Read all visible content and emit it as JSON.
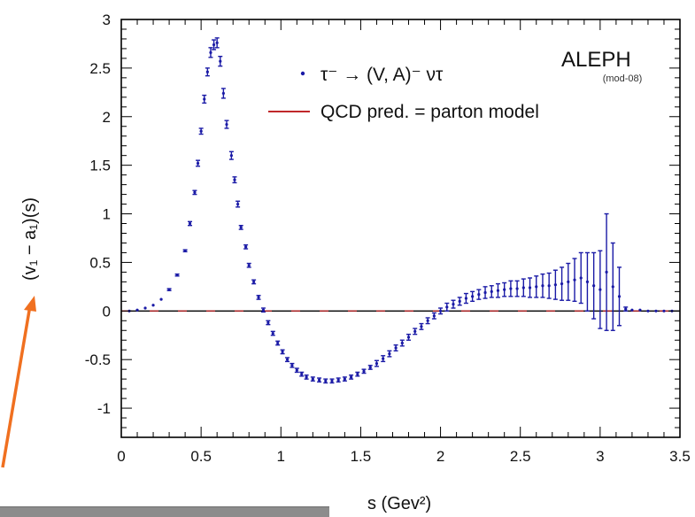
{
  "chart_data": {
    "type": "scatter",
    "title": "",
    "xlabel": "s   (Gev²)",
    "ylabel": "(v₁ − a₁)(s)",
    "xlim": [
      0,
      3.5
    ],
    "ylim": [
      -1.3,
      3.0
    ],
    "x_ticks": [
      "0",
      "0.5",
      "1",
      "1.5",
      "2",
      "2.5",
      "3",
      "3.5"
    ],
    "y_ticks": [
      "-1",
      "-0.5",
      "0",
      "0.5",
      "1",
      "1.5",
      "2",
      "2.5",
      "3"
    ],
    "grid": false,
    "legend_placement": "top-right",
    "annotations": {
      "experiment": "ALEPH",
      "sub": "(mod-08)"
    },
    "legend": [
      {
        "label": "τ⁻ → (V, A)⁻ ντ",
        "color": "#1a1aa6",
        "marker": "point"
      },
      {
        "label": "QCD pred. = parton model",
        "color": "#c0282a",
        "marker": "line"
      }
    ],
    "series": [
      {
        "name": "τ⁻ → (V, A)⁻ ντ",
        "color": "#1a1aa6",
        "points": [
          {
            "x": 0.05,
            "y": 0.0,
            "e": 0.0
          },
          {
            "x": 0.1,
            "y": 0.01,
            "e": 0.0
          },
          {
            "x": 0.15,
            "y": 0.03,
            "e": 0.0
          },
          {
            "x": 0.2,
            "y": 0.06,
            "e": 0.0
          },
          {
            "x": 0.25,
            "y": 0.12,
            "e": 0.0
          },
          {
            "x": 0.3,
            "y": 0.22,
            "e": 0.01
          },
          {
            "x": 0.35,
            "y": 0.37,
            "e": 0.01
          },
          {
            "x": 0.4,
            "y": 0.62,
            "e": 0.01
          },
          {
            "x": 0.43,
            "y": 0.9,
            "e": 0.02
          },
          {
            "x": 0.46,
            "y": 1.22,
            "e": 0.02
          },
          {
            "x": 0.48,
            "y": 1.52,
            "e": 0.03
          },
          {
            "x": 0.5,
            "y": 1.85,
            "e": 0.03
          },
          {
            "x": 0.52,
            "y": 2.18,
            "e": 0.04
          },
          {
            "x": 0.54,
            "y": 2.46,
            "e": 0.04
          },
          {
            "x": 0.56,
            "y": 2.66,
            "e": 0.05
          },
          {
            "x": 0.58,
            "y": 2.74,
            "e": 0.05
          },
          {
            "x": 0.6,
            "y": 2.76,
            "e": 0.05
          },
          {
            "x": 0.62,
            "y": 2.57,
            "e": 0.05
          },
          {
            "x": 0.64,
            "y": 2.24,
            "e": 0.05
          },
          {
            "x": 0.66,
            "y": 1.92,
            "e": 0.04
          },
          {
            "x": 0.69,
            "y": 1.6,
            "e": 0.04
          },
          {
            "x": 0.71,
            "y": 1.35,
            "e": 0.03
          },
          {
            "x": 0.73,
            "y": 1.1,
            "e": 0.03
          },
          {
            "x": 0.75,
            "y": 0.86,
            "e": 0.02
          },
          {
            "x": 0.78,
            "y": 0.66,
            "e": 0.02
          },
          {
            "x": 0.8,
            "y": 0.47,
            "e": 0.02
          },
          {
            "x": 0.83,
            "y": 0.3,
            "e": 0.02
          },
          {
            "x": 0.86,
            "y": 0.14,
            "e": 0.02
          },
          {
            "x": 0.89,
            "y": 0.01,
            "e": 0.02
          },
          {
            "x": 0.92,
            "y": -0.12,
            "e": 0.02
          },
          {
            "x": 0.95,
            "y": -0.23,
            "e": 0.02
          },
          {
            "x": 0.98,
            "y": -0.33,
            "e": 0.02
          },
          {
            "x": 1.01,
            "y": -0.42,
            "e": 0.02
          },
          {
            "x": 1.04,
            "y": -0.5,
            "e": 0.02
          },
          {
            "x": 1.07,
            "y": -0.56,
            "e": 0.02
          },
          {
            "x": 1.1,
            "y": -0.61,
            "e": 0.02
          },
          {
            "x": 1.13,
            "y": -0.65,
            "e": 0.02
          },
          {
            "x": 1.16,
            "y": -0.68,
            "e": 0.02
          },
          {
            "x": 1.2,
            "y": -0.7,
            "e": 0.02
          },
          {
            "x": 1.24,
            "y": -0.71,
            "e": 0.02
          },
          {
            "x": 1.28,
            "y": -0.72,
            "e": 0.02
          },
          {
            "x": 1.32,
            "y": -0.72,
            "e": 0.02
          },
          {
            "x": 1.36,
            "y": -0.71,
            "e": 0.02
          },
          {
            "x": 1.4,
            "y": -0.7,
            "e": 0.02
          },
          {
            "x": 1.44,
            "y": -0.68,
            "e": 0.02
          },
          {
            "x": 1.48,
            "y": -0.65,
            "e": 0.02
          },
          {
            "x": 1.52,
            "y": -0.62,
            "e": 0.02
          },
          {
            "x": 1.56,
            "y": -0.58,
            "e": 0.02
          },
          {
            "x": 1.6,
            "y": -0.54,
            "e": 0.03
          },
          {
            "x": 1.64,
            "y": -0.49,
            "e": 0.03
          },
          {
            "x": 1.68,
            "y": -0.44,
            "e": 0.03
          },
          {
            "x": 1.72,
            "y": -0.38,
            "e": 0.03
          },
          {
            "x": 1.76,
            "y": -0.33,
            "e": 0.03
          },
          {
            "x": 1.8,
            "y": -0.27,
            "e": 0.03
          },
          {
            "x": 1.84,
            "y": -0.21,
            "e": 0.03
          },
          {
            "x": 1.88,
            "y": -0.16,
            "e": 0.03
          },
          {
            "x": 1.92,
            "y": -0.1,
            "e": 0.03
          },
          {
            "x": 1.96,
            "y": -0.05,
            "e": 0.03
          },
          {
            "x": 2.0,
            "y": 0.0,
            "e": 0.03
          },
          {
            "x": 2.04,
            "y": 0.04,
            "e": 0.04
          },
          {
            "x": 2.08,
            "y": 0.07,
            "e": 0.04
          },
          {
            "x": 2.12,
            "y": 0.1,
            "e": 0.04
          },
          {
            "x": 2.16,
            "y": 0.13,
            "e": 0.05
          },
          {
            "x": 2.2,
            "y": 0.15,
            "e": 0.05
          },
          {
            "x": 2.24,
            "y": 0.17,
            "e": 0.05
          },
          {
            "x": 2.28,
            "y": 0.19,
            "e": 0.06
          },
          {
            "x": 2.32,
            "y": 0.2,
            "e": 0.06
          },
          {
            "x": 2.36,
            "y": 0.21,
            "e": 0.07
          },
          {
            "x": 2.4,
            "y": 0.22,
            "e": 0.07
          },
          {
            "x": 2.44,
            "y": 0.23,
            "e": 0.08
          },
          {
            "x": 2.48,
            "y": 0.23,
            "e": 0.08
          },
          {
            "x": 2.52,
            "y": 0.24,
            "e": 0.09
          },
          {
            "x": 2.56,
            "y": 0.24,
            "e": 0.1
          },
          {
            "x": 2.6,
            "y": 0.25,
            "e": 0.11
          },
          {
            "x": 2.64,
            "y": 0.26,
            "e": 0.12
          },
          {
            "x": 2.68,
            "y": 0.26,
            "e": 0.13
          },
          {
            "x": 2.72,
            "y": 0.27,
            "e": 0.15
          },
          {
            "x": 2.76,
            "y": 0.28,
            "e": 0.17
          },
          {
            "x": 2.8,
            "y": 0.3,
            "e": 0.19
          },
          {
            "x": 2.84,
            "y": 0.32,
            "e": 0.22
          },
          {
            "x": 2.88,
            "y": 0.34,
            "e": 0.26
          },
          {
            "x": 2.92,
            "y": 0.3,
            "e": 0.3
          },
          {
            "x": 2.96,
            "y": 0.26,
            "e": 0.34
          },
          {
            "x": 3.0,
            "y": 0.22,
            "e": 0.4
          },
          {
            "x": 3.04,
            "y": 0.4,
            "e": 0.6
          },
          {
            "x": 3.08,
            "y": 0.25,
            "e": 0.45
          },
          {
            "x": 3.12,
            "y": 0.15,
            "e": 0.3
          },
          {
            "x": 3.16,
            "y": 0.02,
            "e": 0.02
          },
          {
            "x": 3.2,
            "y": 0.01,
            "e": 0.0
          },
          {
            "x": 3.25,
            "y": 0.01,
            "e": 0.0
          },
          {
            "x": 3.3,
            "y": 0.0,
            "e": 0.0
          },
          {
            "x": 3.35,
            "y": 0.0,
            "e": 0.0
          },
          {
            "x": 3.4,
            "y": 0.0,
            "e": 0.0
          },
          {
            "x": 3.45,
            "y": 0.0,
            "e": 0.0
          }
        ]
      },
      {
        "name": "QCD pred. = parton model",
        "color": "#c0282a",
        "type": "line",
        "x": [
          0,
          3.5
        ],
        "y": [
          0,
          0
        ]
      }
    ]
  },
  "arrow": {
    "color": "#f07020"
  }
}
